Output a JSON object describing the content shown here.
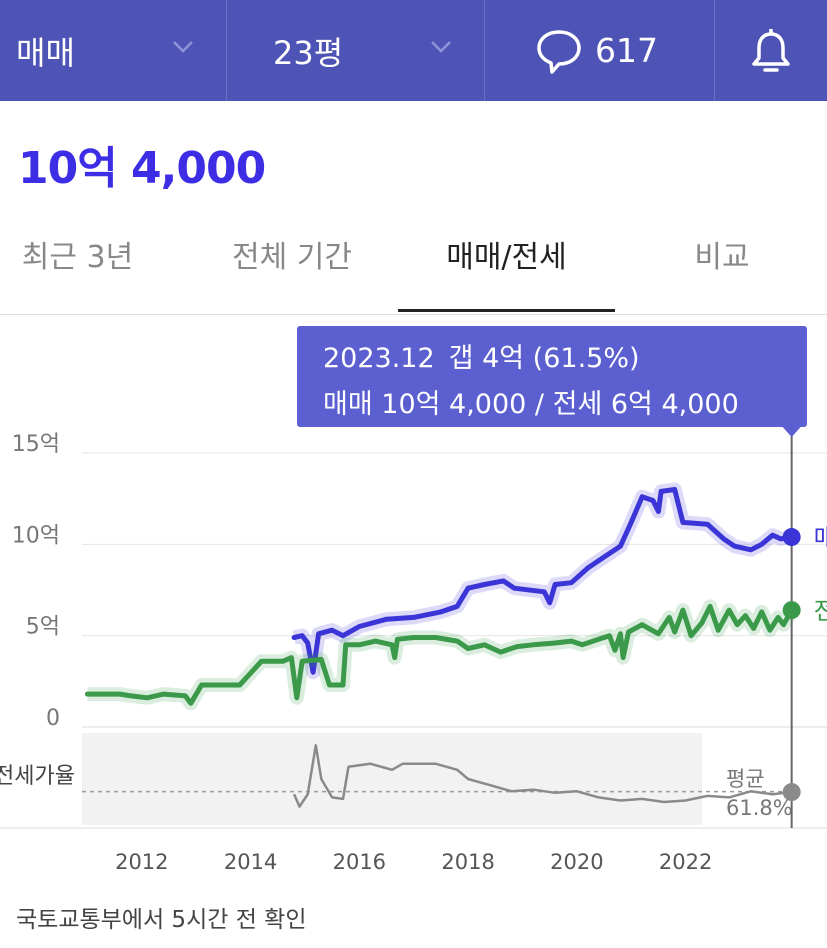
{
  "header": {
    "deal_type": "매매",
    "area": "23평",
    "comment_count": "617",
    "icons": {
      "comment": "chat-bubble-icon",
      "bell": "bell-icon",
      "dropdown": "chevron-down-icon"
    },
    "colors": {
      "bar_bg": "#4e54b5"
    }
  },
  "price": {
    "value": "10억 4,000",
    "color": "#3d2ee6"
  },
  "tabs": [
    {
      "label": "최근 3년",
      "active": false
    },
    {
      "label": "전체 기간",
      "active": false
    },
    {
      "label": "매매/전세",
      "active": true
    },
    {
      "label": "비교",
      "active": false
    }
  ],
  "tooltip": {
    "date": "2023.12",
    "gap": "갭 4억 (61.5%)",
    "detail": "매매 10억 4,000 / 전세 6억 4,000"
  },
  "footer": {
    "source": "국토교통부에서 5시간 전 확인"
  },
  "chart_data": {
    "type": "line",
    "y_tick_labels": [
      "15억",
      "10억",
      "5억",
      "0"
    ],
    "y_ticks": [
      15,
      10,
      5,
      0
    ],
    "ylim": [
      0,
      15
    ],
    "x_tick_labels": [
      "2012",
      "2014",
      "2016",
      "2018",
      "2020",
      "2022"
    ],
    "x_ticks": [
      2012,
      2014,
      2016,
      2018,
      2020,
      2022
    ],
    "xlim": [
      2010.9,
      2024.6
    ],
    "cursor_x": 2023.95,
    "series": [
      {
        "name": "매매",
        "color": "#3b34d6",
        "points": [
          [
            2014.8,
            4.9
          ],
          [
            2014.95,
            5.0
          ],
          [
            2015.05,
            4.6
          ],
          [
            2015.15,
            3.0
          ],
          [
            2015.25,
            5.1
          ],
          [
            2015.5,
            5.3
          ],
          [
            2015.7,
            5.0
          ],
          [
            2016.0,
            5.5
          ],
          [
            2016.5,
            5.9
          ],
          [
            2017.0,
            6.0
          ],
          [
            2017.5,
            6.3
          ],
          [
            2017.8,
            6.6
          ],
          [
            2018.0,
            7.6
          ],
          [
            2018.3,
            7.8
          ],
          [
            2018.65,
            8.0
          ],
          [
            2018.85,
            7.6
          ],
          [
            2019.4,
            7.4
          ],
          [
            2019.5,
            6.8
          ],
          [
            2019.6,
            7.8
          ],
          [
            2019.9,
            7.9
          ],
          [
            2020.2,
            8.7
          ],
          [
            2020.5,
            9.3
          ],
          [
            2020.8,
            9.9
          ],
          [
            2021.0,
            11.2
          ],
          [
            2021.2,
            12.6
          ],
          [
            2021.4,
            12.4
          ],
          [
            2021.5,
            11.8
          ],
          [
            2021.55,
            12.9
          ],
          [
            2021.8,
            13.0
          ],
          [
            2021.95,
            11.2
          ],
          [
            2022.4,
            11.1
          ],
          [
            2022.7,
            10.3
          ],
          [
            2022.9,
            9.9
          ],
          [
            2023.2,
            9.7
          ],
          [
            2023.4,
            10.0
          ],
          [
            2023.6,
            10.5
          ],
          [
            2023.75,
            10.3
          ],
          [
            2023.95,
            10.4
          ]
        ],
        "end_label": "매매"
      },
      {
        "name": "전세",
        "color": "#3a9a4a",
        "points": [
          [
            2011.0,
            1.8
          ],
          [
            2011.6,
            1.8
          ],
          [
            2011.8,
            1.7
          ],
          [
            2012.1,
            1.6
          ],
          [
            2012.4,
            1.8
          ],
          [
            2012.8,
            1.7
          ],
          [
            2012.9,
            1.3
          ],
          [
            2013.1,
            2.3
          ],
          [
            2013.8,
            2.3
          ],
          [
            2014.2,
            3.6
          ],
          [
            2014.6,
            3.6
          ],
          [
            2014.75,
            3.8
          ],
          [
            2014.85,
            1.6
          ],
          [
            2014.95,
            3.6
          ],
          [
            2015.3,
            3.7
          ],
          [
            2015.45,
            2.3
          ],
          [
            2015.7,
            2.3
          ],
          [
            2015.75,
            4.5
          ],
          [
            2016.0,
            4.5
          ],
          [
            2016.3,
            4.7
          ],
          [
            2016.6,
            4.5
          ],
          [
            2016.65,
            3.8
          ],
          [
            2016.7,
            4.8
          ],
          [
            2017.0,
            4.9
          ],
          [
            2017.4,
            4.9
          ],
          [
            2017.8,
            4.7
          ],
          [
            2018.0,
            4.3
          ],
          [
            2018.3,
            4.5
          ],
          [
            2018.6,
            4.1
          ],
          [
            2018.9,
            4.4
          ],
          [
            2019.2,
            4.5
          ],
          [
            2019.6,
            4.6
          ],
          [
            2019.9,
            4.7
          ],
          [
            2020.1,
            4.5
          ],
          [
            2020.4,
            4.8
          ],
          [
            2020.6,
            5.0
          ],
          [
            2020.7,
            4.2
          ],
          [
            2020.8,
            5.1
          ],
          [
            2020.85,
            3.8
          ],
          [
            2020.95,
            5.2
          ],
          [
            2021.2,
            5.6
          ],
          [
            2021.5,
            5.1
          ],
          [
            2021.7,
            6.0
          ],
          [
            2021.8,
            5.2
          ],
          [
            2021.95,
            6.4
          ],
          [
            2022.1,
            5.0
          ],
          [
            2022.3,
            5.7
          ],
          [
            2022.45,
            6.6
          ],
          [
            2022.6,
            5.3
          ],
          [
            2022.8,
            6.4
          ],
          [
            2022.95,
            5.6
          ],
          [
            2023.1,
            6.1
          ],
          [
            2023.25,
            5.4
          ],
          [
            2023.4,
            6.3
          ],
          [
            2023.55,
            5.3
          ],
          [
            2023.7,
            6.0
          ],
          [
            2023.8,
            5.6
          ],
          [
            2023.95,
            6.4
          ]
        ],
        "end_label": "전세"
      }
    ],
    "subchart": {
      "label": "전세가율",
      "average_label": "평균",
      "average_value": "61.8%",
      "average": 61.8,
      "ylim": [
        40,
        100
      ],
      "points": [
        [
          2014.8,
          60.0
        ],
        [
          2014.9,
          52.0
        ],
        [
          2015.05,
          60.0
        ],
        [
          2015.2,
          92.0
        ],
        [
          2015.3,
          70.0
        ],
        [
          2015.5,
          58.0
        ],
        [
          2015.7,
          57.0
        ],
        [
          2015.8,
          78.0
        ],
        [
          2016.2,
          80.0
        ],
        [
          2016.6,
          76.0
        ],
        [
          2016.8,
          80.0
        ],
        [
          2017.4,
          80.0
        ],
        [
          2017.8,
          76.0
        ],
        [
          2018.0,
          70.0
        ],
        [
          2018.4,
          66.0
        ],
        [
          2018.8,
          62.0
        ],
        [
          2019.2,
          63.0
        ],
        [
          2019.6,
          61.0
        ],
        [
          2020.0,
          62.0
        ],
        [
          2020.4,
          58.0
        ],
        [
          2020.8,
          56.0
        ],
        [
          2021.2,
          57.0
        ],
        [
          2021.6,
          55.0
        ],
        [
          2022.0,
          56.0
        ],
        [
          2022.4,
          59.0
        ],
        [
          2022.8,
          58.0
        ],
        [
          2023.2,
          62.0
        ],
        [
          2023.6,
          60.0
        ],
        [
          2023.95,
          61.5
        ]
      ]
    }
  }
}
